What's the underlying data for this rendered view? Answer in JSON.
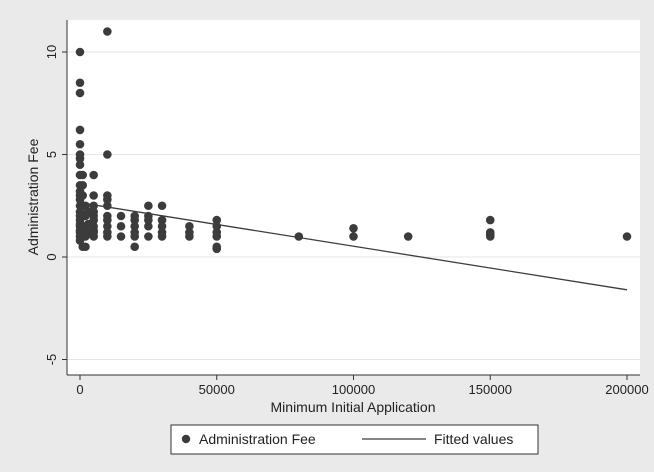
{
  "chart_data": {
    "type": "scatter",
    "title": "",
    "xlabel": "Minimum Initial Application",
    "ylabel": "Administration Fee",
    "xlim": [
      -5000,
      200000
    ],
    "ylim": [
      -5.5,
      11.5
    ],
    "x_ticks": [
      0,
      50000,
      100000,
      150000,
      200000
    ],
    "x_tick_labels": [
      "0",
      "50000",
      "100000",
      "150000",
      "200000"
    ],
    "y_ticks": [
      -5,
      0,
      5,
      10
    ],
    "y_tick_labels": [
      "-5",
      "0",
      "5",
      "10"
    ],
    "grid": true,
    "legend": {
      "placement": "bottom",
      "entries": [
        "Administration Fee",
        "Fitted values"
      ]
    },
    "series": [
      {
        "name": "Administration Fee",
        "type": "scatter",
        "color": "#3c3c3c",
        "points": [
          [
            0,
            10
          ],
          [
            0,
            8.5
          ],
          [
            0,
            8
          ],
          [
            0,
            6.2
          ],
          [
            0,
            5.5
          ],
          [
            0,
            5
          ],
          [
            0,
            4.8
          ],
          [
            0,
            4.5
          ],
          [
            0,
            4
          ],
          [
            0,
            3.5
          ],
          [
            0,
            3.2
          ],
          [
            0,
            3
          ],
          [
            0,
            2.8
          ],
          [
            0,
            2.5
          ],
          [
            0,
            2.2
          ],
          [
            0,
            2
          ],
          [
            0,
            1.8
          ],
          [
            0,
            1.6
          ],
          [
            0,
            1.5
          ],
          [
            0,
            1.3
          ],
          [
            0,
            1.2
          ],
          [
            0,
            1
          ],
          [
            0,
            0.8
          ],
          [
            1000,
            4
          ],
          [
            1000,
            3.5
          ],
          [
            1000,
            3
          ],
          [
            1000,
            2.5
          ],
          [
            1000,
            2
          ],
          [
            1000,
            1.5
          ],
          [
            1000,
            1.2
          ],
          [
            1000,
            1
          ],
          [
            1000,
            0.5
          ],
          [
            2000,
            2.5
          ],
          [
            2000,
            2
          ],
          [
            2000,
            1.5
          ],
          [
            2000,
            1
          ],
          [
            2000,
            0.5
          ],
          [
            3000,
            2.2
          ],
          [
            3000,
            1.6
          ],
          [
            3000,
            1.2
          ],
          [
            5000,
            4
          ],
          [
            5000,
            3
          ],
          [
            5000,
            2.5
          ],
          [
            5000,
            2.2
          ],
          [
            5000,
            2
          ],
          [
            5000,
            1.8
          ],
          [
            5000,
            1.5
          ],
          [
            5000,
            1.3
          ],
          [
            5000,
            1.2
          ],
          [
            5000,
            1
          ],
          [
            10000,
            11
          ],
          [
            10000,
            5
          ],
          [
            10000,
            3
          ],
          [
            10000,
            2.8
          ],
          [
            10000,
            2.5
          ],
          [
            10000,
            2
          ],
          [
            10000,
            1.8
          ],
          [
            10000,
            1.5
          ],
          [
            10000,
            1.2
          ],
          [
            10000,
            1
          ],
          [
            15000,
            2
          ],
          [
            15000,
            1.5
          ],
          [
            15000,
            1
          ],
          [
            20000,
            2
          ],
          [
            20000,
            1.8
          ],
          [
            20000,
            1.5
          ],
          [
            20000,
            1.2
          ],
          [
            20000,
            1
          ],
          [
            20000,
            0.5
          ],
          [
            25000,
            2.5
          ],
          [
            25000,
            2
          ],
          [
            25000,
            1.8
          ],
          [
            25000,
            1.5
          ],
          [
            25000,
            1
          ],
          [
            30000,
            2.5
          ],
          [
            30000,
            1.8
          ],
          [
            30000,
            1.5
          ],
          [
            30000,
            1.2
          ],
          [
            30000,
            1
          ],
          [
            40000,
            1.5
          ],
          [
            40000,
            1.2
          ],
          [
            40000,
            1
          ],
          [
            50000,
            1.8
          ],
          [
            50000,
            1.5
          ],
          [
            50000,
            1.2
          ],
          [
            50000,
            1
          ],
          [
            50000,
            0.5
          ],
          [
            50000,
            0.4
          ],
          [
            80000,
            1
          ],
          [
            100000,
            1.4
          ],
          [
            100000,
            1
          ],
          [
            120000,
            1
          ],
          [
            150000,
            1.8
          ],
          [
            150000,
            1.2
          ],
          [
            150000,
            1.1
          ],
          [
            150000,
            1
          ],
          [
            200000,
            1
          ]
        ]
      },
      {
        "name": "Fitted values",
        "type": "line",
        "color": "#3c3c3c",
        "points": [
          [
            0,
            2.65
          ],
          [
            200000,
            -1.6
          ]
        ]
      }
    ]
  }
}
